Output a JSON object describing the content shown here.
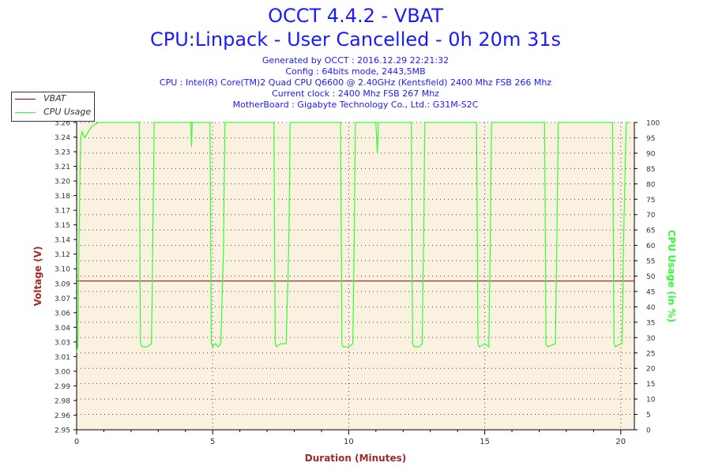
{
  "header": {
    "title": "OCCT 4.4.2 - VBAT",
    "subtitle": "CPU:Linpack - User Cancelled - 0h 20m 31s",
    "info_lines": [
      "Generated by OCCT : 2016.12.29 22:21:32",
      "Config : 64bits mode, 2443,5MB",
      "CPU : Intel(R) Core(TM)2 Quad CPU Q6600 @ 2.40GHz (Kentsfield) 2400 Mhz FSB 266 Mhz",
      "Current clock : 2400 Mhz FSB 267 Mhz",
      "MotherBoard : Gigabyte Technology Co., Ltd.: G31M-S2C"
    ]
  },
  "colors": {
    "title": "#1a1aff",
    "plot_bg": "#fbf1e1",
    "vbat": "#8b0000",
    "cpu": "#33ff33",
    "axis_left_label": "#a52a2a",
    "axis_right_label": "#33ff33",
    "xlabel": "#a52a2a"
  },
  "chart_data": {
    "type": "line",
    "title": "OCCT 4.4.2 - VBAT",
    "xlabel": "Duration (Minutes)",
    "ylabel_left": "Voltage (V)",
    "ylabel_right": "CPU Usage (in %)",
    "xlim": [
      0,
      20.5
    ],
    "ylim_left": [
      2.95,
      3.26
    ],
    "ylim_right": [
      0,
      100
    ],
    "x_ticks": [
      0,
      5,
      10,
      15,
      20
    ],
    "y_left_ticks": [
      "2.95",
      "2.96",
      "2.98",
      "2.99",
      "3.00",
      "3.01",
      "3.03",
      "3.04",
      "3.06",
      "3.07",
      "3.09",
      "3.10",
      "3.12",
      "3.14",
      "3.15",
      "3.17",
      "3.18",
      "3.20",
      "3.21",
      "3.23",
      "3.24",
      "3.26"
    ],
    "y_right_ticks": [
      0,
      5,
      10,
      15,
      20,
      25,
      30,
      35,
      40,
      45,
      50,
      55,
      60,
      65,
      70,
      75,
      80,
      85,
      90,
      95,
      100
    ],
    "grid": true,
    "legend_position": "top-left",
    "series": [
      {
        "name": "VBAT",
        "axis": "left",
        "x": [
          0,
          20.5
        ],
        "y": [
          3.1,
          3.1
        ]
      },
      {
        "name": "CPU Usage",
        "axis": "right",
        "x": [
          0,
          0.05,
          0.1,
          0.15,
          0.2,
          0.3,
          0.5,
          0.6,
          0.8,
          1.0,
          1.5,
          2.0,
          2.3,
          2.35,
          2.4,
          2.45,
          2.6,
          2.75,
          2.8,
          2.85,
          2.9,
          3.5,
          4.0,
          4.2,
          4.22,
          4.25,
          4.4,
          4.8,
          4.9,
          4.95,
          5.0,
          5.1,
          5.2,
          5.3,
          5.4,
          5.45,
          5.5,
          6.0,
          7.0,
          7.25,
          7.3,
          7.35,
          7.5,
          7.7,
          7.8,
          7.85,
          7.9,
          9.0,
          9.7,
          9.75,
          9.8,
          10.0,
          10.15,
          10.2,
          10.25,
          10.3,
          11.0,
          11.05,
          11.1,
          11.15,
          12.0,
          12.3,
          12.35,
          12.4,
          12.6,
          12.7,
          12.75,
          12.8,
          13.5,
          14.7,
          14.75,
          14.8,
          15.0,
          15.15,
          15.2,
          15.25,
          16.0,
          17.2,
          17.25,
          17.3,
          17.6,
          17.65,
          17.7,
          18.5,
          19.7,
          19.75,
          19.8,
          20.0,
          20.05,
          20.1,
          20.2,
          20.3
        ],
        "y": [
          25,
          28,
          70,
          95,
          97,
          95,
          98,
          99,
          100,
          100,
          100,
          100,
          100,
          28,
          27,
          27,
          27,
          28,
          60,
          100,
          100,
          100,
          100,
          100,
          92,
          100,
          100,
          100,
          100,
          28,
          27,
          28,
          27,
          28,
          60,
          100,
          100,
          100,
          100,
          100,
          28,
          27,
          28,
          28,
          60,
          100,
          100,
          100,
          100,
          28,
          27,
          27,
          28,
          60,
          100,
          100,
          100,
          90,
          100,
          100,
          100,
          100,
          28,
          27,
          27,
          28,
          60,
          100,
          100,
          100,
          28,
          27,
          28,
          27,
          60,
          100,
          100,
          100,
          28,
          27,
          28,
          60,
          100,
          100,
          100,
          28,
          27,
          28,
          28,
          60,
          100,
          100
        ]
      }
    ]
  }
}
